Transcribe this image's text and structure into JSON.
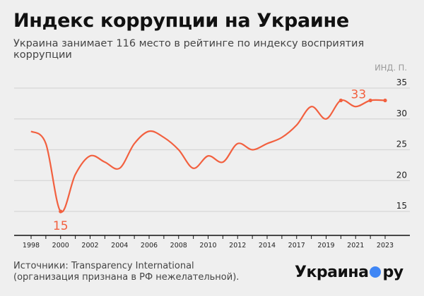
{
  "title": "Индекс коррупции на Украине",
  "subtitle": "Украина занимает 116 место в рейтинге по индексу восприятия коррупции",
  "source_line1": "Источники: Transparency International",
  "source_line2": "(организация признана в РФ нежелательной).",
  "logo": {
    "left": "Украина",
    "right": "ру"
  },
  "chart_data": {
    "type": "line",
    "ylabel": "ИНД. П.",
    "ylim": [
      15,
      35
    ],
    "yticks": [
      15,
      20,
      25,
      30,
      35
    ],
    "tick_labels": [
      "1998",
      "",
      "2000",
      "",
      "2002",
      "",
      "2004",
      "",
      "2006",
      "",
      "2008",
      "",
      "2010",
      "",
      "2012",
      "",
      "2014",
      "",
      "2017",
      "",
      "2019",
      "",
      "2021",
      "",
      "2023"
    ],
    "values": [
      28,
      26,
      15,
      21,
      24,
      23,
      22,
      26,
      28,
      27,
      25,
      22,
      24,
      23,
      26,
      25,
      26,
      27,
      29,
      32,
      30,
      33,
      32,
      33,
      33
    ],
    "annotations": [
      {
        "index": 2,
        "label": "15"
      },
      {
        "index": 21,
        "label": "33"
      }
    ],
    "marked_points": [
      21,
      23,
      24
    ],
    "grid": true,
    "line_color": "#f2603f"
  }
}
